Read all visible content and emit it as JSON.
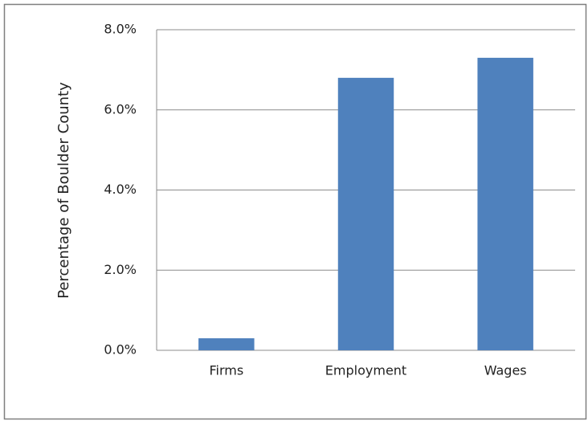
{
  "chart_data": {
    "type": "bar",
    "ylabel": "Percentage of Boulder County",
    "categories": [
      "Firms",
      "Employment",
      "Wages"
    ],
    "values": [
      0.3,
      6.8,
      7.3
    ],
    "color": "#4f81bd",
    "ylim": [
      0,
      8
    ],
    "yticks": [
      {
        "value": 0,
        "label": "0.0%"
      },
      {
        "value": 2,
        "label": "2.0%"
      },
      {
        "value": 4,
        "label": "4.0%"
      },
      {
        "value": 6,
        "label": "6.0%"
      },
      {
        "value": 8,
        "label": "8.0%"
      }
    ],
    "grid": true
  }
}
